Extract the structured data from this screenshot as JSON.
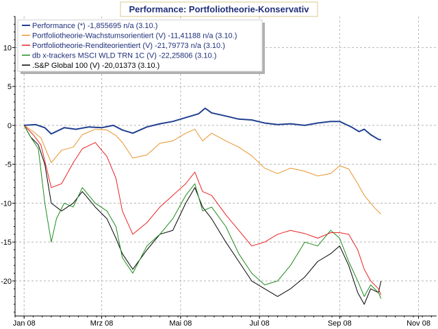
{
  "chart_data": {
    "type": "line",
    "title": "Performance: Portfoliotheorie-Konservativ",
    "xlabel": "",
    "ylabel": "",
    "x_ticks": [
      "Jan 08",
      "Mrz 08",
      "Mai 08",
      "Jul 08",
      "Sep 08",
      "Nov 08"
    ],
    "x_tick_dates": [
      "2008-01-01",
      "2008-03-01",
      "2008-05-01",
      "2008-07-01",
      "2008-09-01",
      "2008-11-01"
    ],
    "xlim": [
      "2007-12-25",
      "2008-11-15"
    ],
    "ylim": [
      -24.5,
      14
    ],
    "y_ticks": [
      -20,
      -15,
      -10,
      -5,
      0,
      5,
      10
    ],
    "grid": true,
    "legend_position": "top-left",
    "series": [
      {
        "name": "Performance (*) -1,855695 n/a (3.10.)",
        "color": "#1f3f8f",
        "x": [
          "2008-01-01",
          "2008-01-10",
          "2008-01-17",
          "2008-01-22",
          "2008-02-01",
          "2008-02-10",
          "2008-02-20",
          "2008-03-01",
          "2008-03-10",
          "2008-03-17",
          "2008-03-25",
          "2008-04-05",
          "2008-04-15",
          "2008-04-25",
          "2008-05-05",
          "2008-05-15",
          "2008-05-20",
          "2008-05-25",
          "2008-06-05",
          "2008-06-15",
          "2008-06-25",
          "2008-07-05",
          "2008-07-15",
          "2008-07-25",
          "2008-08-05",
          "2008-08-15",
          "2008-08-25",
          "2008-09-01",
          "2008-09-10",
          "2008-09-16",
          "2008-09-20",
          "2008-09-25",
          "2008-10-01",
          "2008-10-03"
        ],
        "values": [
          0,
          0.1,
          -0.3,
          -1.1,
          -0.3,
          -0.5,
          -0.2,
          -0.3,
          0,
          -0.6,
          -1.0,
          -0.2,
          0.2,
          0.5,
          1.0,
          1.5,
          2.2,
          1.6,
          1.2,
          0.8,
          0.7,
          0.3,
          0.1,
          0.2,
          0.0,
          0.3,
          0.5,
          0.5,
          -0.2,
          -0.8,
          -0.5,
          -1.2,
          -1.8,
          -1.86
        ]
      },
      {
        "name": "Portfoliotheorie-Wachstumsorientiert (V) -11,41188 n/a (3.10.)",
        "color": "#e8922a",
        "x": [
          "2008-01-01",
          "2008-01-08",
          "2008-01-14",
          "2008-01-22",
          "2008-01-30",
          "2008-02-08",
          "2008-02-15",
          "2008-02-25",
          "2008-03-05",
          "2008-03-12",
          "2008-03-17",
          "2008-03-25",
          "2008-04-05",
          "2008-04-15",
          "2008-04-25",
          "2008-05-05",
          "2008-05-12",
          "2008-05-18",
          "2008-05-25",
          "2008-06-05",
          "2008-06-15",
          "2008-06-25",
          "2008-07-05",
          "2008-07-15",
          "2008-07-25",
          "2008-08-05",
          "2008-08-15",
          "2008-08-25",
          "2008-09-01",
          "2008-09-08",
          "2008-09-15",
          "2008-09-20",
          "2008-09-28",
          "2008-10-03"
        ],
        "values": [
          0,
          -0.8,
          -1.6,
          -4.8,
          -3.2,
          -2.8,
          -1.2,
          -0.5,
          -0.6,
          -1.3,
          -2.2,
          -4.2,
          -3.8,
          -2.3,
          -2.0,
          -1.0,
          -0.5,
          -2.0,
          -1.0,
          -2.0,
          -2.8,
          -3.9,
          -5.5,
          -6.2,
          -5.5,
          -5.9,
          -6.5,
          -6.2,
          -5.2,
          -5.6,
          -7.5,
          -9.0,
          -10.6,
          -11.41
        ]
      },
      {
        "name": "Portfoliotheorie-Renditeorientiert (V) -21,79773 n/a (3.10.)",
        "color": "#e82020",
        "x": [
          "2008-01-01",
          "2008-01-08",
          "2008-01-14",
          "2008-01-22",
          "2008-01-30",
          "2008-02-08",
          "2008-02-15",
          "2008-02-25",
          "2008-03-05",
          "2008-03-12",
          "2008-03-17",
          "2008-03-25",
          "2008-04-05",
          "2008-04-15",
          "2008-04-25",
          "2008-05-05",
          "2008-05-12",
          "2008-05-18",
          "2008-05-25",
          "2008-06-05",
          "2008-06-15",
          "2008-06-25",
          "2008-07-05",
          "2008-07-15",
          "2008-07-25",
          "2008-08-05",
          "2008-08-15",
          "2008-08-25",
          "2008-09-01",
          "2008-09-08",
          "2008-09-15",
          "2008-09-20",
          "2008-09-25",
          "2008-10-01",
          "2008-10-03"
        ],
        "values": [
          0,
          -1.2,
          -2.5,
          -8.0,
          -7.5,
          -4.8,
          -3.0,
          -2.2,
          -4.0,
          -6.8,
          -11.0,
          -14.0,
          -12.5,
          -10.5,
          -9.0,
          -7.5,
          -6.0,
          -8.5,
          -9.0,
          -11.5,
          -13.5,
          -15.5,
          -15.0,
          -14.0,
          -13.5,
          -13.9,
          -14.5,
          -13.8,
          -13.8,
          -14.0,
          -16.0,
          -18.5,
          -20.0,
          -21.0,
          -21.8
        ]
      },
      {
        "name": "db x-trackers MSCI WLD TRN 1C (V) -22,25806 (3.10.)",
        "color": "#1a8a1a",
        "x": [
          "2008-01-01",
          "2008-01-06",
          "2008-01-12",
          "2008-01-17",
          "2008-01-22",
          "2008-01-26",
          "2008-02-01",
          "2008-02-08",
          "2008-02-15",
          "2008-02-25",
          "2008-03-05",
          "2008-03-12",
          "2008-03-17",
          "2008-03-25",
          "2008-04-05",
          "2008-04-15",
          "2008-04-25",
          "2008-05-05",
          "2008-05-12",
          "2008-05-18",
          "2008-05-25",
          "2008-06-05",
          "2008-06-15",
          "2008-06-25",
          "2008-07-05",
          "2008-07-15",
          "2008-07-25",
          "2008-08-05",
          "2008-08-15",
          "2008-08-25",
          "2008-09-01",
          "2008-09-08",
          "2008-09-15",
          "2008-09-20",
          "2008-09-25",
          "2008-10-01",
          "2008-10-03"
        ],
        "values": [
          0,
          -1.5,
          -3.0,
          -10.0,
          -15.0,
          -12.0,
          -10.0,
          -10.5,
          -8.0,
          -10.0,
          -11.0,
          -13.0,
          -17.0,
          -19.0,
          -15.5,
          -14.0,
          -12.0,
          -9.0,
          -7.5,
          -11.0,
          -10.5,
          -13.0,
          -16.5,
          -19.0,
          -20.5,
          -20.0,
          -18.0,
          -15.0,
          -15.5,
          -13.5,
          -14.5,
          -17.5,
          -20.0,
          -22.0,
          -20.5,
          -21.5,
          -22.26
        ]
      },
      {
        "name": ".S&P Global 100 (V) -20,01373 (3.10.)",
        "color": "#000000",
        "x": [
          "2008-01-01",
          "2008-01-06",
          "2008-01-12",
          "2008-01-17",
          "2008-01-22",
          "2008-01-30",
          "2008-02-08",
          "2008-02-15",
          "2008-02-25",
          "2008-03-05",
          "2008-03-12",
          "2008-03-17",
          "2008-03-25",
          "2008-04-05",
          "2008-04-15",
          "2008-04-25",
          "2008-05-05",
          "2008-05-12",
          "2008-05-18",
          "2008-05-25",
          "2008-06-05",
          "2008-06-15",
          "2008-06-25",
          "2008-07-05",
          "2008-07-15",
          "2008-07-25",
          "2008-08-05",
          "2008-08-15",
          "2008-08-25",
          "2008-09-01",
          "2008-09-08",
          "2008-09-15",
          "2008-09-20",
          "2008-09-25",
          "2008-10-01",
          "2008-10-03"
        ],
        "values": [
          0,
          -1.5,
          -2.5,
          -5.0,
          -10.0,
          -11.0,
          -10.0,
          -8.5,
          -10.5,
          -12.0,
          -14.5,
          -16.5,
          -18.5,
          -16.0,
          -14.0,
          -13.5,
          -10.0,
          -8.0,
          -10.5,
          -12.0,
          -15.0,
          -17.5,
          -20.0,
          -21.0,
          -22.0,
          -21.0,
          -19.5,
          -17.5,
          -16.5,
          -15.5,
          -18.0,
          -21.5,
          -23.0,
          -21.0,
          -21.5,
          -20.01
        ]
      }
    ]
  }
}
